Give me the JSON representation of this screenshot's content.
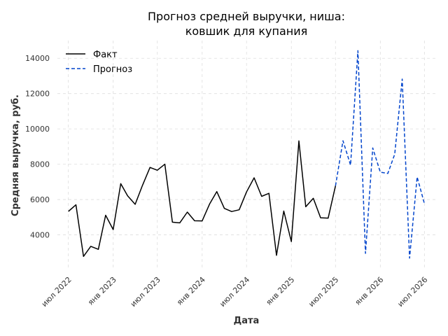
{
  "chart_data": {
    "type": "line",
    "title_line1": "Прогноз средней выручки, ниша:",
    "title_line2": "ковшик для купания",
    "xlabel": "Дата",
    "ylabel": "Средняя выручка, руб.",
    "ylim": [
      2000,
      15000
    ],
    "yticks": [
      4000,
      6000,
      8000,
      10000,
      12000,
      14000
    ],
    "xlim": [
      "2022-05-17",
      "2026-08-15"
    ],
    "xticks": [
      {
        "date": "2022-07-01",
        "label": "июл 2022"
      },
      {
        "date": "2023-01-01",
        "label": "янв 2023"
      },
      {
        "date": "2023-07-01",
        "label": "июл 2023"
      },
      {
        "date": "2024-01-01",
        "label": "янв 2024"
      },
      {
        "date": "2024-07-01",
        "label": "июл 2024"
      },
      {
        "date": "2025-01-01",
        "label": "янв 2025"
      },
      {
        "date": "2025-07-01",
        "label": "июл 2025"
      },
      {
        "date": "2026-01-01",
        "label": "янв 2026"
      },
      {
        "date": "2026-07-01",
        "label": "июл 2026"
      }
    ],
    "grid": true,
    "legend_position": "top-left",
    "series": [
      {
        "name": "Факт",
        "color": "#000000",
        "style": "solid",
        "x": [
          "2022-07-01",
          "2022-08-01",
          "2022-09-01",
          "2022-10-01",
          "2022-11-01",
          "2022-12-01",
          "2023-01-01",
          "2023-02-01",
          "2023-03-01",
          "2023-04-01",
          "2023-05-01",
          "2023-06-01",
          "2023-07-01",
          "2023-08-01",
          "2023-09-01",
          "2023-10-01",
          "2023-11-01",
          "2023-12-01",
          "2024-01-01",
          "2024-02-01",
          "2024-03-01",
          "2024-04-01",
          "2024-05-01",
          "2024-06-01",
          "2024-07-01",
          "2024-08-01",
          "2024-09-01",
          "2024-10-01",
          "2024-11-01",
          "2024-12-01",
          "2025-01-01",
          "2025-02-01",
          "2025-03-01",
          "2025-04-01",
          "2025-05-01",
          "2025-06-01",
          "2025-07-01"
        ],
        "y": [
          5330,
          5700,
          2780,
          3350,
          3180,
          5110,
          4300,
          6900,
          6210,
          5730,
          6800,
          7820,
          7660,
          8000,
          4720,
          4680,
          5290,
          4800,
          4790,
          5760,
          6450,
          5500,
          5320,
          5420,
          6430,
          7230,
          6180,
          6350,
          2840,
          5350,
          3620,
          9320,
          5590,
          6070,
          4970,
          4950,
          6780
        ]
      },
      {
        "name": "Прогноз",
        "color": "#0044cc",
        "style": "dashed",
        "x": [
          "2025-07-01",
          "2025-08-01",
          "2025-09-01",
          "2025-10-01",
          "2025-11-01",
          "2025-12-01",
          "2026-01-01",
          "2026-02-01",
          "2026-03-01",
          "2026-04-01",
          "2026-05-01",
          "2026-06-01",
          "2026-07-01"
        ],
        "y": [
          6780,
          9330,
          7950,
          14430,
          2950,
          8920,
          7550,
          7480,
          8570,
          12820,
          2680,
          7280,
          5770
        ]
      }
    ]
  }
}
